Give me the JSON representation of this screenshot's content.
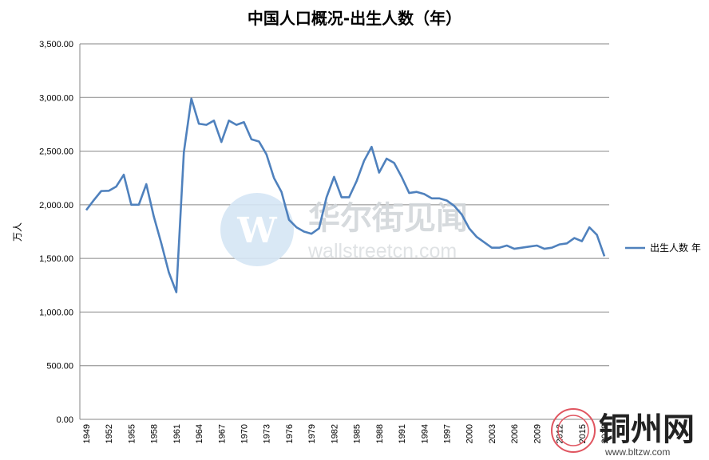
{
  "chart_data": {
    "type": "line",
    "title": "中国人口概况-出生人数（年）",
    "ylabel": "万人",
    "xlabel": "",
    "ylim": [
      0,
      3500
    ],
    "yticks": [
      "0.00",
      "500.00",
      "1,000.00",
      "1,500.00",
      "2,000.00",
      "2,500.00",
      "3,000.00",
      "3,500.00"
    ],
    "ytick_values": [
      0,
      500,
      1000,
      1500,
      2000,
      2500,
      3000,
      3500
    ],
    "x": [
      1949,
      1950,
      1951,
      1952,
      1953,
      1954,
      1955,
      1956,
      1957,
      1958,
      1959,
      1960,
      1961,
      1962,
      1963,
      1964,
      1965,
      1966,
      1967,
      1968,
      1969,
      1970,
      1971,
      1972,
      1973,
      1974,
      1975,
      1976,
      1977,
      1978,
      1979,
      1980,
      1981,
      1982,
      1983,
      1984,
      1985,
      1986,
      1987,
      1988,
      1989,
      1990,
      1991,
      1992,
      1993,
      1994,
      1995,
      1996,
      1997,
      1998,
      1999,
      2000,
      2001,
      2002,
      2003,
      2004,
      2005,
      2006,
      2007,
      2008,
      2009,
      2010,
      2011,
      2012,
      2013,
      2014,
      2015,
      2016,
      2017,
      2018
    ],
    "xticks": [
      1949,
      1952,
      1955,
      1958,
      1961,
      1964,
      1967,
      1970,
      1973,
      1976,
      1979,
      1982,
      1985,
      1988,
      1991,
      1994,
      1997,
      2000,
      2003,
      2006,
      2009,
      2012,
      2015,
      2018
    ],
    "xtick_labels": [
      "1949",
      "1952",
      "1955",
      "1958",
      "1961",
      "1964",
      "1967",
      "1970",
      "1973",
      "1976",
      "1979",
      "1982",
      "1985",
      "1988",
      "1991",
      "1994",
      "1997",
      "2000",
      "2003",
      "2006",
      "2009",
      "2012",
      "2015",
      "2018"
    ],
    "series": [
      {
        "name": "出生人数 年",
        "color": "#4f81bd",
        "values": [
          1950,
          2042,
          2128,
          2130,
          2170,
          2280,
          2000,
          2000,
          2192,
          1890,
          1640,
          1370,
          1185,
          2490,
          2990,
          2755,
          2745,
          2785,
          2585,
          2785,
          2745,
          2770,
          2610,
          2590,
          2470,
          2250,
          2120,
          1860,
          1790,
          1750,
          1730,
          1780,
          2070,
          2260,
          2070,
          2070,
          2220,
          2410,
          2540,
          2300,
          2430,
          2390,
          2260,
          2110,
          2120,
          2100,
          2060,
          2060,
          2040,
          1990,
          1910,
          1780,
          1700,
          1650,
          1600,
          1600,
          1620,
          1590,
          1600,
          1610,
          1620,
          1590,
          1600,
          1630,
          1640,
          1690,
          1660,
          1790,
          1720,
          1520
        ]
      }
    ],
    "grid": true,
    "legend_position": "right"
  },
  "watermark": {
    "text_cn": "华尔街见闻",
    "text_en": "wallstreetcn.com",
    "logo_letter": "W"
  },
  "corner_logo": {
    "text_cn": "铜州网",
    "url_text": "www.bltzw.com"
  }
}
